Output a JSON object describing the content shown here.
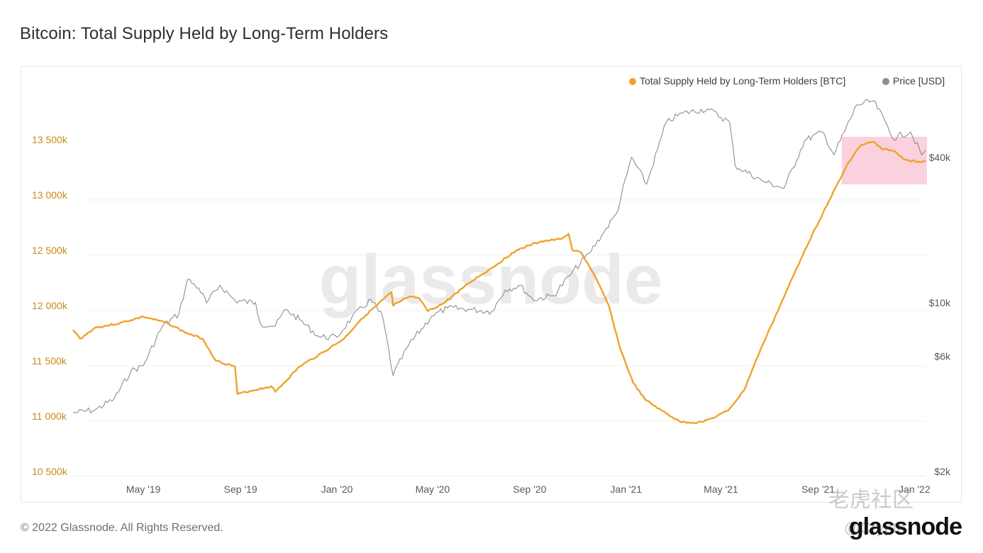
{
  "page": {
    "title": "Bitcoin: Total Supply Held by Long-Term Holders",
    "footer": "© 2022 Glassnode. All Rights Reserved.",
    "brand": "glassnode",
    "stamp": "老虎社区",
    "stamp_handle": "@Crypto"
  },
  "chart_data": {
    "type": "line",
    "watermark": "glassnode",
    "legend_placement": "top-right",
    "colors": {
      "ltH": "#f0a22b",
      "price": "#8e8e8e",
      "highlight": "#f9c9d6"
    },
    "x_ticks": [
      "May '19",
      "Sep '19",
      "Jan '20",
      "May '20",
      "Sep '20",
      "Jan '21",
      "May '21",
      "Sep '21",
      "Jan '22"
    ],
    "x_range": [
      "2019-02-01",
      "2022-01-15"
    ],
    "y_left": {
      "ticks": [
        "10 500k",
        "11 000k",
        "11 500k",
        "12 000k",
        "12 500k",
        "13 000k",
        "13 500k"
      ],
      "range": [
        10500000,
        13800000
      ]
    },
    "y_right": {
      "ticks": [
        "$2k",
        "$6k",
        "$10k",
        "$40k"
      ],
      "scale": "log",
      "range": [
        2000,
        80000
      ]
    },
    "highlight_range": {
      "start": "2021-10-01",
      "end": "2022-01-15"
    },
    "series": [
      {
        "name": "Total Supply Held by Long-Term Holders [BTC]",
        "axis": "left",
        "points": [
          [
            "2019-02-01",
            11780000
          ],
          [
            "2019-02-10",
            11700000
          ],
          [
            "2019-03-01",
            11800000
          ],
          [
            "2019-04-01",
            11840000
          ],
          [
            "2019-05-01",
            11900000
          ],
          [
            "2019-06-01",
            11840000
          ],
          [
            "2019-06-25",
            11750000
          ],
          [
            "2019-07-15",
            11700000
          ],
          [
            "2019-08-01",
            11500000
          ],
          [
            "2019-08-25",
            11450000
          ],
          [
            "2019-08-28",
            11200000
          ],
          [
            "2019-09-15",
            11230000
          ],
          [
            "2019-10-10",
            11270000
          ],
          [
            "2019-10-15",
            11220000
          ],
          [
            "2019-11-15",
            11450000
          ],
          [
            "2019-12-15",
            11580000
          ],
          [
            "2020-01-10",
            11700000
          ],
          [
            "2020-02-01",
            11880000
          ],
          [
            "2020-02-20",
            12000000
          ],
          [
            "2020-03-10",
            12120000
          ],
          [
            "2020-03-12",
            12000000
          ],
          [
            "2020-04-01",
            12080000
          ],
          [
            "2020-04-15",
            12060000
          ],
          [
            "2020-04-25",
            11950000
          ],
          [
            "2020-05-15",
            12020000
          ],
          [
            "2020-06-15",
            12200000
          ],
          [
            "2020-07-15",
            12340000
          ],
          [
            "2020-08-15",
            12500000
          ],
          [
            "2020-09-15",
            12580000
          ],
          [
            "2020-10-10",
            12600000
          ],
          [
            "2020-10-20",
            12650000
          ],
          [
            "2020-10-25",
            12500000
          ],
          [
            "2020-11-05",
            12480000
          ],
          [
            "2020-11-20",
            12300000
          ],
          [
            "2020-12-10",
            12000000
          ],
          [
            "2020-12-25",
            11600000
          ],
          [
            "2021-01-10",
            11300000
          ],
          [
            "2021-01-25",
            11150000
          ],
          [
            "2021-02-15",
            11050000
          ],
          [
            "2021-03-10",
            10950000
          ],
          [
            "2021-04-01",
            10940000
          ],
          [
            "2021-04-20",
            10980000
          ],
          [
            "2021-05-10",
            11050000
          ],
          [
            "2021-05-30",
            11230000
          ],
          [
            "2021-06-20",
            11600000
          ],
          [
            "2021-07-15",
            12000000
          ],
          [
            "2021-08-15",
            12500000
          ],
          [
            "2021-09-15",
            12950000
          ],
          [
            "2021-10-10",
            13300000
          ],
          [
            "2021-10-25",
            13450000
          ],
          [
            "2021-11-10",
            13480000
          ],
          [
            "2021-11-20",
            13420000
          ],
          [
            "2021-12-05",
            13400000
          ],
          [
            "2021-12-20",
            13320000
          ],
          [
            "2022-01-05",
            13300000
          ],
          [
            "2022-01-15",
            13310000
          ]
        ]
      },
      {
        "name": "Price [USD]",
        "axis": "right",
        "points": [
          [
            "2019-02-01",
            3500
          ],
          [
            "2019-03-01",
            3600
          ],
          [
            "2019-03-25",
            4000
          ],
          [
            "2019-04-15",
            5200
          ],
          [
            "2019-05-01",
            5500
          ],
          [
            "2019-05-25",
            8000
          ],
          [
            "2019-06-15",
            9000
          ],
          [
            "2019-06-26",
            12500
          ],
          [
            "2019-07-10",
            11500
          ],
          [
            "2019-07-20",
            10000
          ],
          [
            "2019-08-06",
            11800
          ],
          [
            "2019-08-25",
            10200
          ],
          [
            "2019-09-20",
            10000
          ],
          [
            "2019-09-26",
            8200
          ],
          [
            "2019-10-15",
            8000
          ],
          [
            "2019-10-28",
            9400
          ],
          [
            "2019-11-15",
            8500
          ],
          [
            "2019-12-10",
            7200
          ],
          [
            "2020-01-01",
            7200
          ],
          [
            "2020-01-20",
            8700
          ],
          [
            "2020-02-13",
            10300
          ],
          [
            "2020-02-28",
            8700
          ],
          [
            "2020-03-12",
            5000
          ],
          [
            "2020-04-01",
            6700
          ],
          [
            "2020-04-30",
            8800
          ],
          [
            "2020-05-20",
            9500
          ],
          [
            "2020-06-15",
            9400
          ],
          [
            "2020-07-15",
            9200
          ],
          [
            "2020-08-01",
            11300
          ],
          [
            "2020-08-20",
            11800
          ],
          [
            "2020-09-05",
            10300
          ],
          [
            "2020-10-01",
            10700
          ],
          [
            "2020-10-21",
            12900
          ],
          [
            "2020-11-15",
            16000
          ],
          [
            "2020-12-01",
            19000
          ],
          [
            "2020-12-20",
            23500
          ],
          [
            "2021-01-08",
            40000
          ],
          [
            "2021-01-27",
            31000
          ],
          [
            "2021-02-21",
            56000
          ],
          [
            "2021-03-13",
            61000
          ],
          [
            "2021-04-14",
            63500
          ],
          [
            "2021-05-12",
            56000
          ],
          [
            "2021-05-19",
            37000
          ],
          [
            "2021-06-22",
            32000
          ],
          [
            "2021-07-20",
            29800
          ],
          [
            "2021-08-15",
            47000
          ],
          [
            "2021-09-07",
            51000
          ],
          [
            "2021-09-21",
            41000
          ],
          [
            "2021-10-20",
            66000
          ],
          [
            "2021-11-10",
            68500
          ],
          [
            "2021-11-28",
            54000
          ],
          [
            "2021-12-04",
            48000
          ],
          [
            "2021-12-27",
            51000
          ],
          [
            "2022-01-10",
            41000
          ],
          [
            "2022-01-15",
            43000
          ]
        ]
      }
    ]
  }
}
